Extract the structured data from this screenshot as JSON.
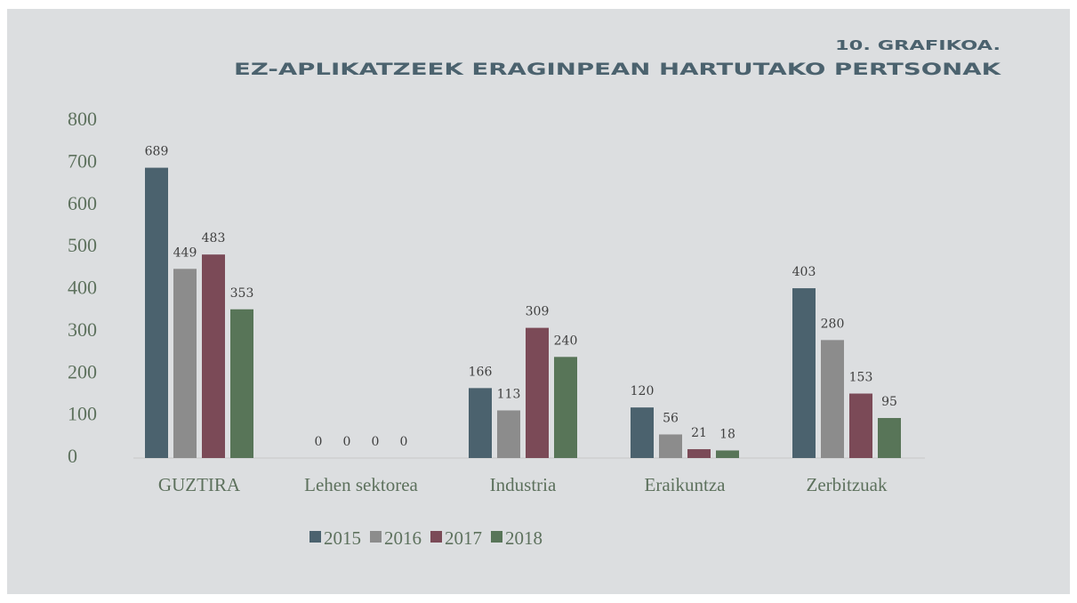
{
  "chart_data": {
    "type": "bar",
    "title": [
      "10. GRAFIKOA.",
      "EZ-APLIKATZEEK ERAGINPEAN HARTUTAKO PERTSONAK"
    ],
    "categories": [
      "GUZTIRA",
      "Lehen sektorea",
      "Industria",
      "Eraikuntza",
      "Zerbitzuak"
    ],
    "series": [
      {
        "name": "2015",
        "color": "#4b626e",
        "values": [
          689,
          0,
          166,
          120,
          403
        ]
      },
      {
        "name": "2016",
        "color": "#8c8c8c",
        "values": [
          449,
          0,
          113,
          56,
          280
        ]
      },
      {
        "name": "2017",
        "color": "#7b4a57",
        "values": [
          483,
          0,
          309,
          21,
          153
        ]
      },
      {
        "name": "2018",
        "color": "#587558",
        "values": [
          353,
          0,
          240,
          18,
          95
        ]
      }
    ],
    "ylim": [
      0,
      800
    ],
    "yticks": [
      0,
      100,
      200,
      300,
      400,
      500,
      600,
      700,
      800
    ],
    "legend": "bottom"
  }
}
